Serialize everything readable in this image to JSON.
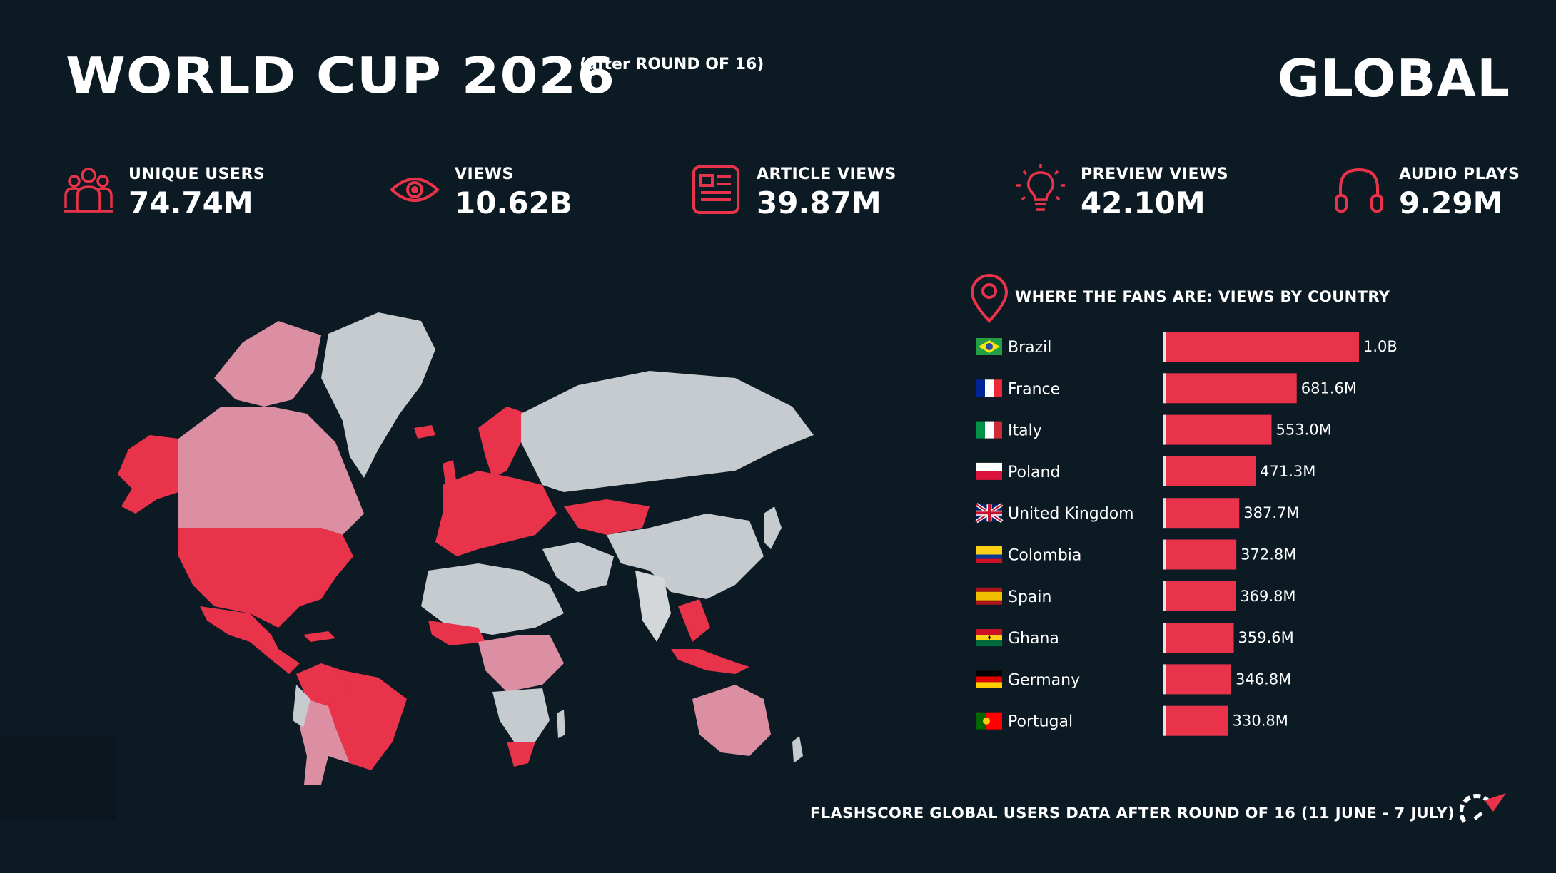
{
  "header": {
    "title": "WORLD CUP 2026",
    "subtitle": "(after ROUND OF 16)",
    "region": "GLOBAL"
  },
  "kpis": [
    {
      "label": "UNIQUE USERS",
      "value": "74.74M",
      "icon": "users-icon"
    },
    {
      "label": "VIEWS",
      "value": "10.62B",
      "icon": "eye-icon"
    },
    {
      "label": "ARTICLE VIEWS",
      "value": "39.87M",
      "icon": "article-icon"
    },
    {
      "label": "PREVIEW VIEWS",
      "value": "42.10M",
      "icon": "lightbulb-icon"
    },
    {
      "label": "AUDIO PLAYS",
      "value": "9.29M",
      "icon": "headphones-icon"
    }
  ],
  "section_title": "WHERE THE FANS ARE: VIEWS BY COUNTRY",
  "footer": "FLASHSCORE GLOBAL USERS DATA AFTER ROUND OF 16 (11 JUNE - 7 JULY)",
  "colors": {
    "background": "#0c1a24",
    "accent": "#e8334a",
    "map_high": "#e8334a",
    "map_medium": "#dc8ea2",
    "map_none": "#c5cbce"
  },
  "chart_data": [
    {
      "type": "bar",
      "orientation": "horizontal",
      "title": "WHERE THE FANS ARE: VIEWS BY COUNTRY",
      "categories": [
        "Brazil",
        "France",
        "Italy",
        "Poland",
        "United Kingdom",
        "Colombia",
        "Spain",
        "Ghana",
        "Germany",
        "Portugal"
      ],
      "values": [
        1000,
        681.6,
        553.0,
        471.3,
        387.7,
        372.8,
        369.8,
        359.6,
        346.8,
        330.8
      ],
      "value_unit": "M views",
      "data_labels": [
        "1.0B",
        "681.6M",
        "553.0M",
        "471.3M",
        "387.7M",
        "372.8M",
        "369.8M",
        "359.6M",
        "346.8M",
        "330.8M"
      ],
      "flags": [
        "brazil-flag-icon",
        "france-flag-icon",
        "italy-flag-icon",
        "poland-flag-icon",
        "uk-flag-icon",
        "colombia-flag-icon",
        "spain-flag-icon",
        "ghana-flag-icon",
        "germany-flag-icon",
        "portugal-flag-icon"
      ],
      "bar_color": "#e8334a",
      "xlim": [
        0,
        1000
      ],
      "grid": false,
      "legend": "none"
    },
    {
      "type": "choropleth",
      "categories": [
        "high",
        "medium",
        "none"
      ],
      "colors": [
        "#e8334a",
        "#dc8ea2",
        "#c5cbce"
      ],
      "legend": "none"
    }
  ]
}
